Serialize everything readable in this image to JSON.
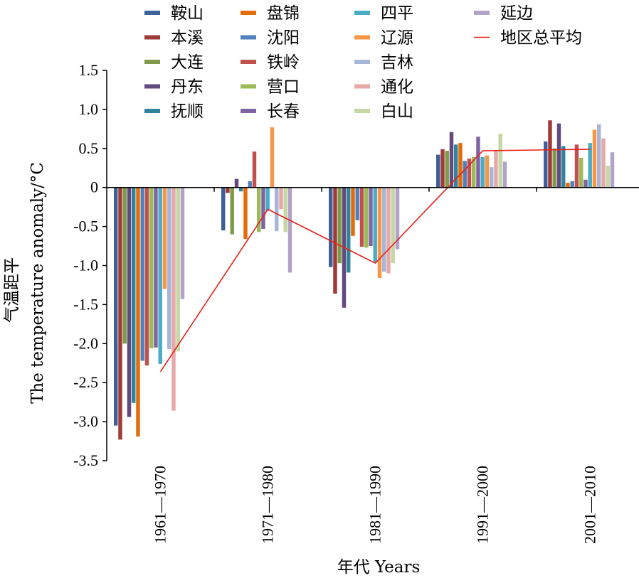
{
  "chart_data": {
    "type": "bar",
    "title": "",
    "xlabel": "年代 Years",
    "ylabel_cn": "气温距平",
    "ylabel": "The temperature anomaly/°C",
    "ylim": [
      -3.5,
      1.5
    ],
    "yticks": [
      "1.5",
      "1.0",
      "0.5",
      "0",
      "-0.5",
      "-1.0",
      "-1.5",
      "-2.0",
      "-2.5",
      "-3.0",
      "-3.5"
    ],
    "ytick_values": [
      1.5,
      1.0,
      0.5,
      0,
      -0.5,
      -1.0,
      -1.5,
      -2.0,
      -2.5,
      -3.0,
      -3.5
    ],
    "categories": [
      "1961—1970",
      "1971—1980",
      "1981—1990",
      "1991—2000",
      "2001—2010"
    ],
    "grid": false,
    "legend_position": "top",
    "series": [
      {
        "name": "鞍山",
        "color": "#3F5F9A",
        "values": [
          -3.05,
          -0.55,
          -1.02,
          0.42,
          0.59
        ]
      },
      {
        "name": "本溪",
        "color": "#9E3A38",
        "values": [
          -3.23,
          -0.07,
          -1.36,
          0.49,
          0.86
        ]
      },
      {
        "name": "大连",
        "color": "#7F9A48",
        "values": [
          -2.0,
          -0.6,
          -0.97,
          0.47,
          0.5
        ]
      },
      {
        "name": "丹东",
        "color": "#624A7E",
        "values": [
          -2.94,
          0.11,
          -1.54,
          0.71,
          0.82
        ]
      },
      {
        "name": "抚顺",
        "color": "#31849B",
        "values": [
          -2.76,
          -0.05,
          -1.09,
          0.55,
          0.53
        ]
      },
      {
        "name": "盘锦",
        "color": "#E46C0A",
        "values": [
          -3.19,
          -0.66,
          -0.62,
          0.57,
          0.06
        ]
      },
      {
        "name": "沈阳",
        "color": "#4F81BD",
        "values": [
          -2.22,
          0.08,
          -0.42,
          0.34,
          0.08
        ]
      },
      {
        "name": "铁岭",
        "color": "#C0504D",
        "values": [
          -2.28,
          0.46,
          -0.76,
          0.37,
          0.55
        ]
      },
      {
        "name": "营口",
        "color": "#9BBB59",
        "values": [
          -2.06,
          -0.57,
          -0.77,
          0.39,
          0.38
        ]
      },
      {
        "name": "长春",
        "color": "#8064A2",
        "values": [
          -2.05,
          -0.53,
          -0.75,
          0.65,
          0.1
        ]
      },
      {
        "name": "四平",
        "color": "#4BACC6",
        "values": [
          -2.26,
          -0.3,
          -0.96,
          0.39,
          0.57
        ]
      },
      {
        "name": "辽源",
        "color": "#F79646",
        "values": [
          -1.3,
          0.77,
          -1.16,
          0.41,
          0.74
        ]
      },
      {
        "name": "吉林",
        "color": "#A6B6D8",
        "values": [
          -2.07,
          -0.56,
          -1.08,
          0.26,
          0.81
        ]
      },
      {
        "name": "通化",
        "color": "#E6A9A7",
        "values": [
          -2.86,
          -0.28,
          -1.1,
          0.47,
          0.63
        ]
      },
      {
        "name": "白山",
        "color": "#C4D7A4",
        "values": [
          -2.1,
          -0.57,
          -0.97,
          0.69,
          0.28
        ]
      },
      {
        "name": "延边",
        "color": "#B3A2C7",
        "values": [
          -1.43,
          -1.09,
          -0.79,
          0.33,
          0.45
        ]
      }
    ],
    "line_series": {
      "name": "地区总平均",
      "color": "#E8201A",
      "values": [
        -2.36,
        -0.28,
        -0.97,
        0.47,
        0.49
      ]
    },
    "legend_columns": [
      [
        "鞍山",
        "本溪",
        "大连",
        "丹东",
        "抚顺"
      ],
      [
        "盘锦",
        "沈阳",
        "铁岭",
        "营口",
        "长春"
      ],
      [
        "四平",
        "辽源",
        "吉林",
        "通化",
        "白山"
      ],
      [
        "延边",
        "地区总平均"
      ]
    ]
  }
}
